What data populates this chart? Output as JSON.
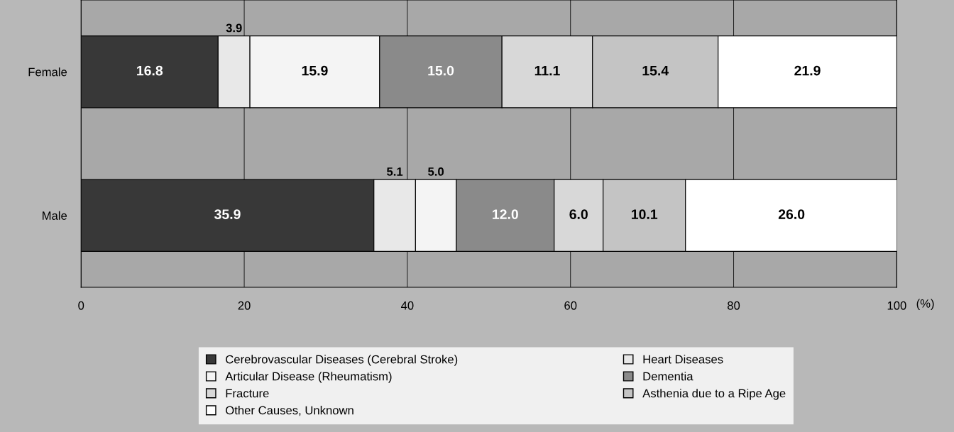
{
  "chart_data": {
    "type": "bar",
    "orientation": "horizontal",
    "stacked": true,
    "categories": [
      "Female",
      "Male"
    ],
    "xlabel": "(%)",
    "xlim": [
      0,
      100
    ],
    "xticks": [
      0,
      20,
      40,
      60,
      80,
      100
    ],
    "grid": "x",
    "legend": "bottom",
    "series": [
      {
        "name": "Cerebrovascular Diseases (Cerebral Stroke)",
        "color": "#383838",
        "values": [
          16.8,
          35.9
        ],
        "value_labels": [
          "16.8",
          "35.9"
        ]
      },
      {
        "name": "Heart Diseases",
        "color": "#e8e8e8",
        "values": [
          3.9,
          5.1
        ],
        "value_labels": [
          "3.9",
          "5.1"
        ]
      },
      {
        "name": "Articular Disease (Rheumatism)",
        "color": "#f4f4f4",
        "values": [
          15.9,
          5.0
        ],
        "value_labels": [
          "15.9",
          "5.0"
        ]
      },
      {
        "name": "Dementia",
        "color": "#8a8a8a",
        "values": [
          15.0,
          12.0
        ],
        "value_labels": [
          "15.0",
          "12.0"
        ]
      },
      {
        "name": "Fracture",
        "color": "#d8d8d8",
        "values": [
          11.1,
          6.0
        ],
        "value_labels": [
          "11.1",
          "6.0"
        ]
      },
      {
        "name": "Asthenia due to a Ripe Age",
        "color": "#c4c4c4",
        "values": [
          15.4,
          10.1
        ],
        "value_labels": [
          "15.4",
          "10.1"
        ]
      },
      {
        "name": "Other Causes, Unknown",
        "color": "#ffffff",
        "values": [
          21.9,
          26.0
        ],
        "value_labels": [
          "21.9",
          "26.0"
        ]
      }
    ]
  }
}
